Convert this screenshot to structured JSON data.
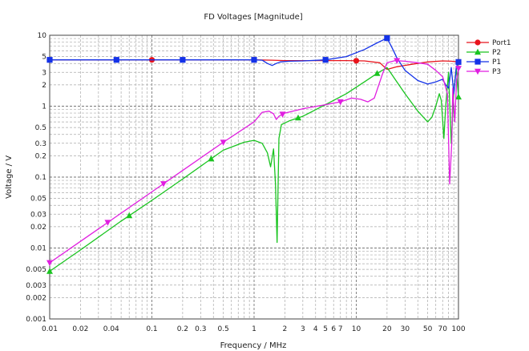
{
  "chart_data": {
    "type": "line",
    "title": "FD Voltages [Magnitude]",
    "xlabel": "Frequency / MHz",
    "ylabel": "Voltage / V",
    "xscale": "log",
    "yscale": "log",
    "xlim": [
      0.01,
      100
    ],
    "ylim": [
      0.001,
      10
    ],
    "grid": true,
    "legend": "right",
    "x_ticks": [
      {
        "v": 0.01,
        "label": "0.01"
      },
      {
        "v": 0.02,
        "label": "0.02"
      },
      {
        "v": 0.04,
        "label": "0.04"
      },
      {
        "v": 0.1,
        "label": "0.1"
      },
      {
        "v": 0.2,
        "label": "0.2"
      },
      {
        "v": 0.3,
        "label": "0.3"
      },
      {
        "v": 0.5,
        "label": "0.5"
      },
      {
        "v": 1,
        "label": "1"
      },
      {
        "v": 2,
        "label": "2"
      },
      {
        "v": 3,
        "label": "3"
      },
      {
        "v": 4,
        "label": "4"
      },
      {
        "v": 5,
        "label": "5"
      },
      {
        "v": 6,
        "label": "6"
      },
      {
        "v": 7,
        "label": "7"
      },
      {
        "v": 10,
        "label": "10"
      },
      {
        "v": 20,
        "label": "20"
      },
      {
        "v": 30,
        "label": "30"
      },
      {
        "v": 50,
        "label": "50"
      },
      {
        "v": 70,
        "label": "70"
      },
      {
        "v": 100,
        "label": "100"
      }
    ],
    "y_ticks": [
      {
        "v": 10,
        "label": "10"
      },
      {
        "v": 5,
        "label": "5"
      },
      {
        "v": 3,
        "label": "3"
      },
      {
        "v": 2,
        "label": "2"
      },
      {
        "v": 1,
        "label": "1"
      },
      {
        "v": 0.5,
        "label": "0.5"
      },
      {
        "v": 0.3,
        "label": "0.3"
      },
      {
        "v": 0.2,
        "label": "0.2"
      },
      {
        "v": 0.1,
        "label": "0.1"
      },
      {
        "v": 0.05,
        "label": "0.05"
      },
      {
        "v": 0.03,
        "label": "0.03"
      },
      {
        "v": 0.02,
        "label": "0.02"
      },
      {
        "v": 0.01,
        "label": "0.01"
      },
      {
        "v": 0.005,
        "label": "0.005"
      },
      {
        "v": 0.003,
        "label": "0.003"
      },
      {
        "v": 0.002,
        "label": "0.002"
      },
      {
        "v": 0.001,
        "label": "0.001"
      }
    ],
    "series": [
      {
        "name": "Port1",
        "color": "#e8141c",
        "marker": "circle",
        "x": [
          0.01,
          0.1,
          1,
          1.5,
          2,
          3,
          5,
          8,
          12,
          17,
          20,
          25,
          35,
          50,
          70,
          85,
          100
        ],
        "y": [
          4.5,
          4.5,
          4.5,
          4.45,
          4.4,
          4.4,
          4.4,
          4.4,
          4.35,
          4.1,
          3.3,
          3.6,
          3.9,
          4.2,
          4.35,
          4.3,
          4.2
        ],
        "markers_x": [
          0.01,
          0.1,
          1,
          10,
          100
        ]
      },
      {
        "name": "P2",
        "color": "#19c41f",
        "marker": "triangle",
        "x": [
          0.01,
          0.02,
          0.05,
          0.1,
          0.2,
          0.5,
          0.8,
          1,
          1.2,
          1.35,
          1.45,
          1.55,
          1.62,
          1.68,
          1.75,
          1.85,
          2.2,
          3,
          5,
          8,
          12,
          16,
          20,
          25,
          30,
          40,
          50,
          55,
          60,
          65,
          68,
          72,
          75,
          80,
          85,
          90,
          95,
          100
        ],
        "y": [
          0.0047,
          0.0094,
          0.024,
          0.047,
          0.094,
          0.24,
          0.31,
          0.33,
          0.3,
          0.22,
          0.14,
          0.25,
          0.08,
          0.012,
          0.35,
          0.55,
          0.62,
          0.72,
          1.05,
          1.5,
          2.2,
          2.9,
          3.5,
          2.2,
          1.5,
          0.85,
          0.6,
          0.7,
          1.0,
          1.5,
          1.2,
          0.35,
          1.0,
          3.0,
          0.3,
          1.5,
          3.5,
          1.35
        ],
        "markers_x": [
          0.01,
          0.06,
          0.38,
          2.7,
          16,
          100
        ]
      },
      {
        "name": "P1",
        "color": "#1432e8",
        "marker": "square",
        "x": [
          0.01,
          0.1,
          1,
          1.2,
          1.35,
          1.5,
          1.65,
          1.8,
          2.2,
          3,
          5,
          8,
          12,
          16,
          20,
          22,
          25,
          30,
          40,
          50,
          60,
          70,
          75,
          80,
          85,
          90,
          95,
          100
        ],
        "y": [
          4.5,
          4.5,
          4.5,
          4.45,
          4.0,
          3.75,
          4.0,
          4.2,
          4.3,
          4.35,
          4.5,
          5.0,
          6.3,
          7.8,
          9.1,
          7.0,
          4.8,
          3.2,
          2.3,
          2.05,
          2.2,
          2.4,
          2.0,
          1.8,
          3.5,
          1.5,
          3.5,
          4.2
        ],
        "markers_x": [
          0.01,
          0.045,
          0.2,
          1,
          5,
          20,
          100
        ]
      },
      {
        "name": "P3",
        "color": "#e01ee0",
        "marker": "tri_down",
        "x": [
          0.01,
          0.02,
          0.05,
          0.1,
          0.2,
          0.5,
          1,
          1.2,
          1.4,
          1.55,
          1.65,
          1.75,
          2,
          3,
          5,
          7,
          9,
          11,
          13,
          15,
          18,
          20,
          24,
          30,
          40,
          50,
          60,
          70,
          78,
          82,
          86,
          88,
          92,
          96,
          100
        ],
        "y": [
          0.0062,
          0.0124,
          0.031,
          0.062,
          0.124,
          0.31,
          0.6,
          0.82,
          0.85,
          0.78,
          0.65,
          0.72,
          0.8,
          0.92,
          1.05,
          1.15,
          1.3,
          1.25,
          1.15,
          1.3,
          2.8,
          4.1,
          4.4,
          4.3,
          4.1,
          3.9,
          3.2,
          2.6,
          1.5,
          0.08,
          0.3,
          1.8,
          0.6,
          2.4,
          3.4
        ],
        "markers_x": [
          0.01,
          0.037,
          0.13,
          0.5,
          1.9,
          7,
          25,
          100
        ]
      }
    ]
  }
}
